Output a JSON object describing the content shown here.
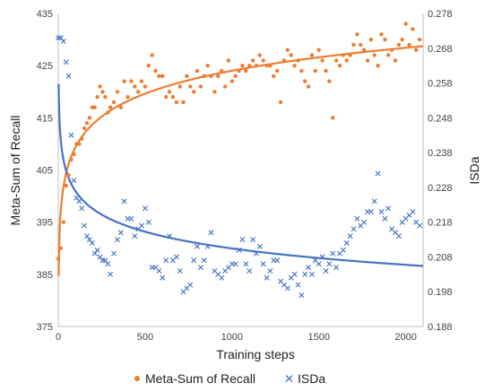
{
  "chart_data": {
    "type": "scatter",
    "xlabel": "Training steps",
    "ylabel_left": "Meta-Sum of Recall",
    "ylabel_right": "ISDa",
    "xlim": [
      0,
      2100
    ],
    "ylim_left": [
      375,
      435
    ],
    "ylim_right": [
      0.188,
      0.278
    ],
    "x_ticks": [
      0,
      500,
      1000,
      1500,
      2000
    ],
    "y_ticks_left": [
      375,
      385,
      395,
      405,
      415,
      425,
      435
    ],
    "y_ticks_right": [
      "0.188",
      "0.198",
      "0.208",
      "0.218",
      "0.228",
      "0.238",
      "0.248",
      "0.258",
      "0.268",
      "0.278"
    ],
    "grid": false,
    "legend_position": "bottom",
    "colors": {
      "orange": "#ED7D31",
      "blue": "#4472C4"
    },
    "series": [
      {
        "name": "Meta-Sum of Recall",
        "axis": "left",
        "marker": "circle",
        "color": "#ED7D31",
        "x": [
          0,
          15,
          30,
          45,
          60,
          75,
          90,
          105,
          120,
          135,
          150,
          165,
          180,
          195,
          210,
          225,
          240,
          255,
          270,
          285,
          300,
          320,
          340,
          360,
          380,
          400,
          420,
          440,
          460,
          480,
          500,
          520,
          540,
          560,
          580,
          600,
          620,
          640,
          660,
          680,
          700,
          720,
          740,
          760,
          780,
          800,
          820,
          840,
          860,
          880,
          900,
          920,
          940,
          960,
          980,
          1000,
          1020,
          1040,
          1060,
          1080,
          1100,
          1120,
          1140,
          1160,
          1180,
          1200,
          1220,
          1240,
          1260,
          1280,
          1300,
          1320,
          1340,
          1360,
          1380,
          1400,
          1420,
          1440,
          1460,
          1480,
          1500,
          1520,
          1540,
          1560,
          1580,
          1600,
          1620,
          1640,
          1660,
          1680,
          1700,
          1720,
          1740,
          1760,
          1780,
          1800,
          1820,
          1840,
          1860,
          1880,
          1900,
          1920,
          1940,
          1960,
          1980,
          2000,
          2020,
          2040,
          2060,
          2080
        ],
        "y": [
          388,
          390,
          395,
          402,
          404,
          407,
          408,
          410,
          410,
          411,
          413,
          414,
          415,
          417,
          417,
          419,
          421,
          420,
          419,
          416,
          417,
          418,
          420,
          417,
          422,
          419,
          422,
          421,
          420,
          422,
          421,
          425,
          427,
          424,
          423,
          423,
          419,
          420,
          419,
          418,
          421,
          418,
          423,
          421,
          420,
          424,
          421,
          423,
          425,
          423,
          420,
          423,
          424,
          421,
          426,
          422,
          423,
          424,
          425,
          424,
          425,
          426,
          425,
          427,
          426,
          425,
          425,
          423,
          424,
          418,
          426,
          428,
          427,
          425,
          426,
          424,
          422,
          421,
          427,
          424,
          428,
          426,
          424,
          422,
          415,
          426,
          425,
          427,
          426,
          427,
          429,
          431,
          429,
          428,
          426,
          430,
          427,
          425,
          431,
          430,
          427,
          428,
          426,
          429,
          430,
          433,
          429,
          432,
          428,
          430
        ],
        "trend": "logarithmic"
      },
      {
        "name": "ISDa",
        "axis": "right",
        "marker": "x",
        "color": "#4472C4",
        "x": [
          0,
          15,
          30,
          45,
          60,
          75,
          90,
          105,
          120,
          135,
          150,
          165,
          180,
          195,
          210,
          225,
          240,
          255,
          270,
          285,
          300,
          320,
          340,
          360,
          380,
          400,
          420,
          440,
          460,
          480,
          500,
          520,
          540,
          560,
          580,
          600,
          620,
          640,
          660,
          680,
          700,
          720,
          740,
          760,
          780,
          800,
          820,
          840,
          860,
          880,
          900,
          920,
          940,
          960,
          980,
          1000,
          1020,
          1040,
          1060,
          1080,
          1100,
          1120,
          1140,
          1160,
          1180,
          1200,
          1220,
          1240,
          1260,
          1280,
          1300,
          1320,
          1340,
          1360,
          1380,
          1400,
          1420,
          1440,
          1460,
          1480,
          1500,
          1520,
          1540,
          1560,
          1580,
          1600,
          1620,
          1640,
          1660,
          1680,
          1700,
          1720,
          1740,
          1760,
          1780,
          1800,
          1820,
          1840,
          1860,
          1880,
          1900,
          1920,
          1940,
          1960,
          1980,
          2000,
          2020,
          2040,
          2060,
          2080
        ],
        "y": [
          0.271,
          0.271,
          0.27,
          0.264,
          0.26,
          0.243,
          0.23,
          0.225,
          0.224,
          0.222,
          0.217,
          0.214,
          0.213,
          0.212,
          0.209,
          0.21,
          0.208,
          0.207,
          0.207,
          0.206,
          0.203,
          0.209,
          0.213,
          0.215,
          0.224,
          0.219,
          0.219,
          0.214,
          0.216,
          0.217,
          0.222,
          0.218,
          0.205,
          0.205,
          0.204,
          0.202,
          0.207,
          0.214,
          0.207,
          0.208,
          0.204,
          0.198,
          0.199,
          0.2,
          0.207,
          0.211,
          0.205,
          0.207,
          0.211,
          0.215,
          0.204,
          0.203,
          0.202,
          0.204,
          0.205,
          0.206,
          0.206,
          0.21,
          0.213,
          0.206,
          0.204,
          0.213,
          0.209,
          0.211,
          0.206,
          0.202,
          0.204,
          0.207,
          0.207,
          0.201,
          0.2,
          0.199,
          0.202,
          0.203,
          0.2,
          0.197,
          0.203,
          0.205,
          0.203,
          0.207,
          0.206,
          0.208,
          0.204,
          0.206,
          0.209,
          0.205,
          0.209,
          0.21,
          0.212,
          0.214,
          0.216,
          0.219,
          0.217,
          0.218,
          0.221,
          0.221,
          0.224,
          0.232,
          0.221,
          0.219,
          0.222,
          0.216,
          0.215,
          0.214,
          0.218,
          0.219,
          0.22,
          0.221,
          0.218,
          0.217
        ],
        "trend": "power"
      }
    ]
  }
}
